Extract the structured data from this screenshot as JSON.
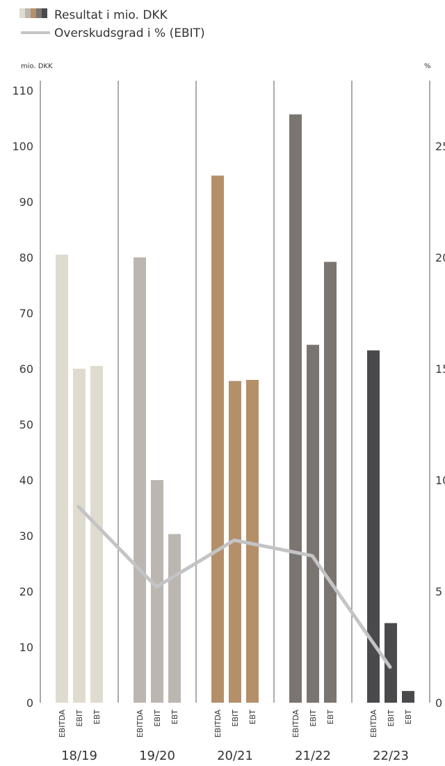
{
  "legend": {
    "bars_label": "Resultat i mio. DKK",
    "line_label": "Overskudsgrad i % (EBIT)",
    "swatch_colors": [
      "#dfdbcf",
      "#bcb6b0",
      "#b3906a",
      "#7a7570",
      "#4a4a4c"
    ]
  },
  "chart_data": {
    "type": "bar",
    "left_axis_label": "mio. DKK",
    "right_axis_label": "%",
    "left_ticks": [
      0,
      10,
      20,
      30,
      40,
      50,
      60,
      70,
      80,
      90,
      100,
      110
    ],
    "right_ticks": [
      0,
      5,
      10,
      15,
      20,
      25
    ],
    "ylim_left": [
      0,
      110
    ],
    "ylim_right": [
      0,
      27.5
    ],
    "bar_labels": [
      "EBITDA",
      "EBIT",
      "EBT"
    ],
    "grid": "vertical separators between groups",
    "groups": [
      {
        "label": "18/19",
        "color": "#dfdbcf",
        "values": [
          80.5,
          60,
          60.5
        ]
      },
      {
        "label": "19/20",
        "color": "#bcb6b0",
        "values": [
          80,
          40,
          30.3
        ]
      },
      {
        "label": "20/21",
        "color": "#b3906a",
        "values": [
          94.7,
          57.8,
          58
        ]
      },
      {
        "label": "21/22",
        "color": "#7a7570",
        "values": [
          105.7,
          64.3,
          79.2
        ]
      },
      {
        "label": "22/23",
        "color": "#4a4a4c",
        "values": [
          63.3,
          14.3,
          2.1
        ]
      }
    ],
    "line_series": {
      "name": "Overskudsgrad i % (EBIT)",
      "color": "#c4c4c6",
      "values": [
        8.8,
        5.2,
        7.3,
        6.6,
        1.6
      ]
    }
  }
}
